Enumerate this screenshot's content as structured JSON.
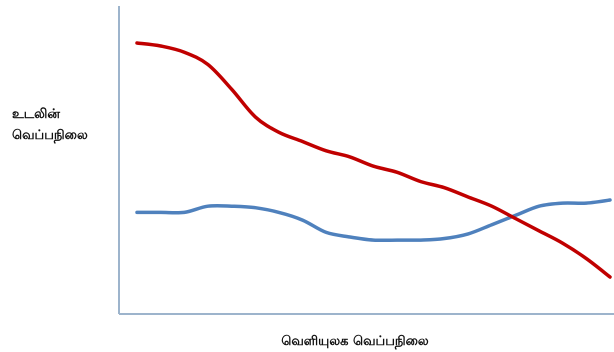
{
  "chart_data": {
    "type": "line",
    "title": "",
    "xlabel": "வெளியுலக வெப்பநிலை",
    "ylabel": [
      "உடலின்",
      "வெப்பநிலை"
    ],
    "xlim": [
      0,
      100
    ],
    "ylim": [
      0,
      100
    ],
    "grid": false,
    "legend": "none",
    "x": [
      0,
      5,
      10,
      15,
      20,
      25,
      30,
      35,
      40,
      45,
      50,
      55,
      60,
      65,
      70,
      75,
      80,
      85,
      90,
      95,
      100
    ],
    "series": [
      {
        "color": "#c00000",
        "values": [
          88,
          87,
          85,
          81,
          73,
          64,
          59,
          56,
          53,
          51,
          48,
          46,
          43,
          41,
          38,
          35,
          31,
          27,
          23,
          18,
          12
        ]
      },
      {
        "color": "#4f81bd",
        "values": [
          33,
          33,
          33,
          35,
          35,
          34.5,
          33,
          30.5,
          26.5,
          25,
          24,
          24,
          24,
          24.5,
          26,
          29,
          32,
          35,
          36,
          36,
          37
        ]
      }
    ]
  }
}
